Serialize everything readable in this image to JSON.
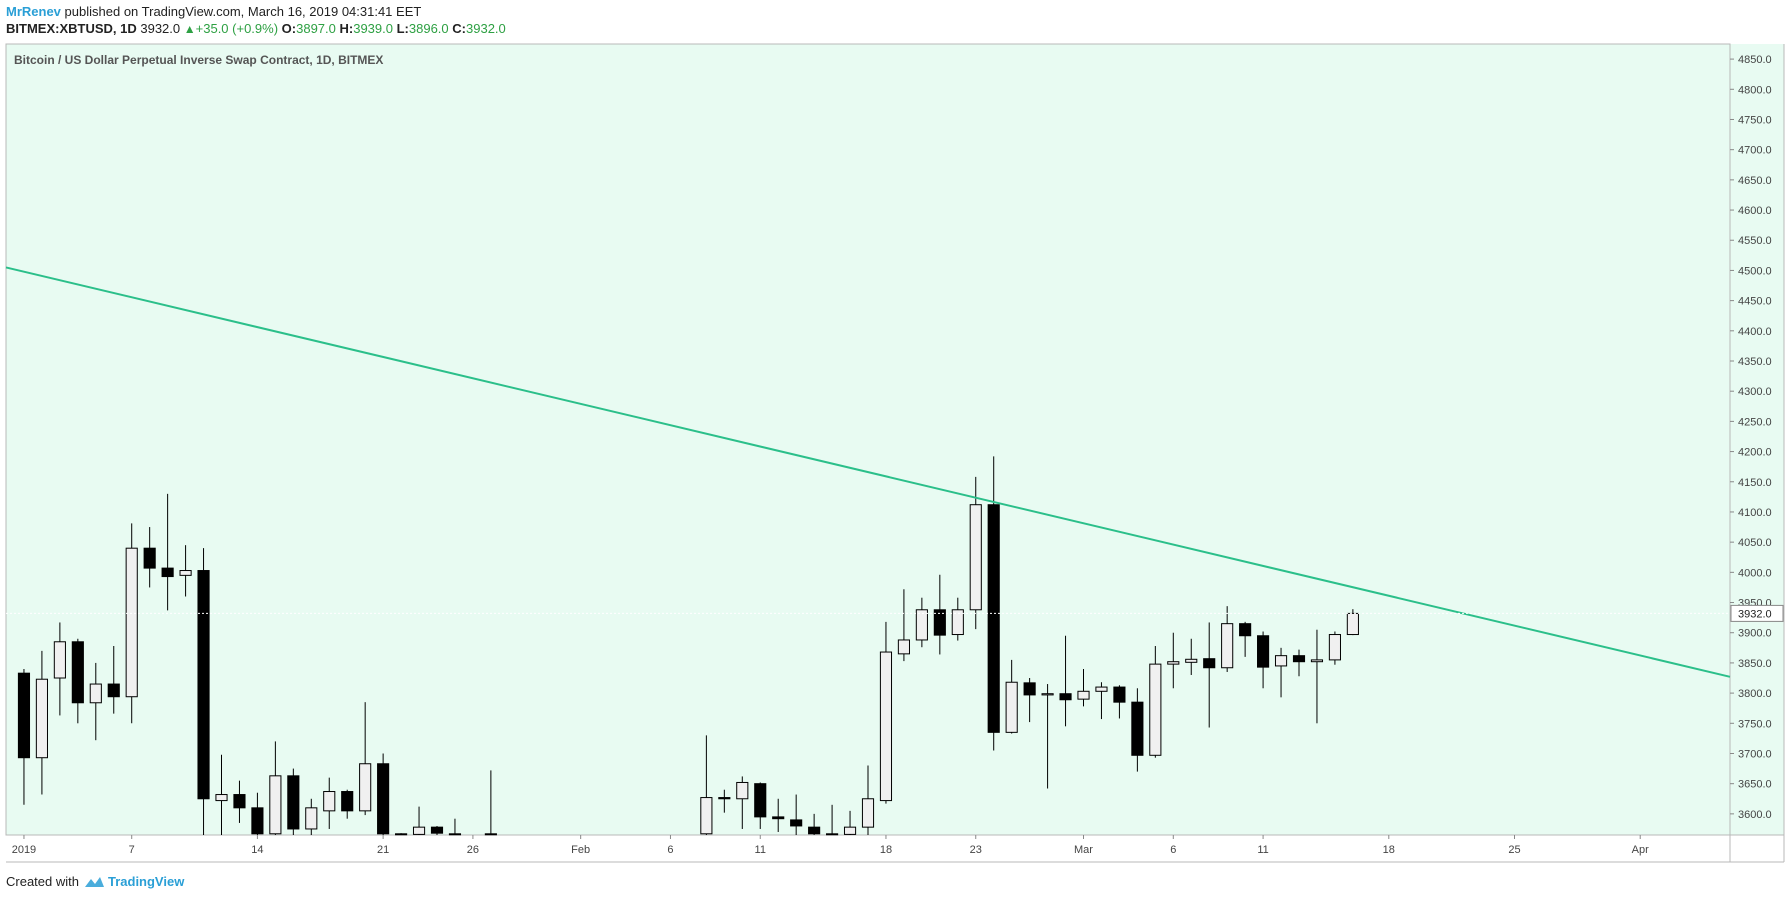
{
  "header": {
    "author": "MrRenev",
    "published_text": "published on TradingView.com, March 16, 2019 04:31:41 EET",
    "symbol": "BITMEX:XBTUSD, 1D",
    "last_price": "3932.0",
    "change": "+35.0 (+0.9%)",
    "ohlc": {
      "o_label": "O:",
      "o": "3897.0",
      "h_label": "H:",
      "h": "3939.0",
      "l_label": "L:",
      "l": "3896.0",
      "c_label": "C:",
      "c": "3932.0"
    }
  },
  "footer": {
    "created_with": "Created with",
    "brand": "TradingView"
  },
  "colors": {
    "background": "#e8fbf2",
    "trendline": "#2bbf8a",
    "bull_fill": "#f0f0f0",
    "bear_fill": "#000000",
    "accent_blue": "#2a9fd6",
    "up_green": "#2ea043"
  },
  "chart_data": {
    "type": "candlestick",
    "title": "Bitcoin / US Dollar Perpetual Inverse Swap Contract, 1D, BITMEX",
    "xlabel": "",
    "ylabel": "",
    "ylim": [
      3565,
      4875
    ],
    "x_range": [
      "2018-12-31",
      "2019-04-06"
    ],
    "grid": false,
    "y_ticks": [
      "4850.0",
      "4800.0",
      "4750.0",
      "4700.0",
      "4650.0",
      "4600.0",
      "4550.0",
      "4500.0",
      "4450.0",
      "4400.0",
      "4350.0",
      "4300.0",
      "4250.0",
      "4200.0",
      "4150.0",
      "4100.0",
      "4050.0",
      "4000.0",
      "3950.0",
      "3900.0",
      "3850.0",
      "3800.0",
      "3750.0",
      "3700.0",
      "3650.0",
      "3600.0"
    ],
    "x_ticks": [
      {
        "date": "2019-01-01",
        "label": "2019"
      },
      {
        "date": "2019-01-07",
        "label": "7"
      },
      {
        "date": "2019-01-14",
        "label": "14"
      },
      {
        "date": "2019-01-21",
        "label": "21"
      },
      {
        "date": "2019-01-26",
        "label": "26"
      },
      {
        "date": "2019-02-01",
        "label": "Feb"
      },
      {
        "date": "2019-02-06",
        "label": "6"
      },
      {
        "date": "2019-02-11",
        "label": "11"
      },
      {
        "date": "2019-02-18",
        "label": "18"
      },
      {
        "date": "2019-02-23",
        "label": "23"
      },
      {
        "date": "2019-03-01",
        "label": "Mar"
      },
      {
        "date": "2019-03-06",
        "label": "6"
      },
      {
        "date": "2019-03-11",
        "label": "11"
      },
      {
        "date": "2019-03-18",
        "label": "18"
      },
      {
        "date": "2019-03-25",
        "label": "25"
      },
      {
        "date": "2019-04-01",
        "label": "Apr"
      }
    ],
    "price_label": "3932.0",
    "trendline": {
      "start": {
        "date": "2018-12-31",
        "price": 4505
      },
      "end": {
        "date": "2019-04-06",
        "price": 3827
      }
    },
    "candles": [
      {
        "date": "2019-01-01",
        "o": 3833,
        "h": 3840,
        "l": 3615,
        "c": 3693
      },
      {
        "date": "2019-01-02",
        "o": 3693,
        "h": 3870,
        "l": 3632,
        "c": 3823
      },
      {
        "date": "2019-01-03",
        "o": 3825,
        "h": 3917,
        "l": 3763,
        "c": 3885
      },
      {
        "date": "2019-01-04",
        "o": 3885,
        "h": 3890,
        "l": 3750,
        "c": 3784
      },
      {
        "date": "2019-01-05",
        "o": 3784,
        "h": 3850,
        "l": 3722,
        "c": 3815
      },
      {
        "date": "2019-01-06",
        "o": 3815,
        "h": 3878,
        "l": 3766,
        "c": 3794
      },
      {
        "date": "2019-01-07",
        "o": 3794,
        "h": 4081,
        "l": 3750,
        "c": 4040
      },
      {
        "date": "2019-01-08",
        "o": 4040,
        "h": 4075,
        "l": 3975,
        "c": 4007
      },
      {
        "date": "2019-01-09",
        "o": 4007,
        "h": 4130,
        "l": 3937,
        "c": 3993
      },
      {
        "date": "2019-01-10",
        "o": 3995,
        "h": 4045,
        "l": 3960,
        "c": 4003
      },
      {
        "date": "2019-01-11",
        "o": 4003,
        "h": 4040,
        "l": 3565,
        "c": 3625
      },
      {
        "date": "2019-01-12",
        "o": 3622,
        "h": 3698,
        "l": 3565,
        "c": 3632
      },
      {
        "date": "2019-01-13",
        "o": 3632,
        "h": 3655,
        "l": 3585,
        "c": 3610
      },
      {
        "date": "2019-01-14",
        "o": 3610,
        "h": 3635,
        "l": 3565,
        "c": 3567
      },
      {
        "date": "2019-01-15",
        "o": 3567,
        "h": 3720,
        "l": 3565,
        "c": 3663
      },
      {
        "date": "2019-01-16",
        "o": 3663,
        "h": 3675,
        "l": 3565,
        "c": 3575
      },
      {
        "date": "2019-01-17",
        "o": 3575,
        "h": 3625,
        "l": 3565,
        "c": 3610
      },
      {
        "date": "2019-01-18",
        "o": 3605,
        "h": 3660,
        "l": 3575,
        "c": 3637
      },
      {
        "date": "2019-01-19",
        "o": 3637,
        "h": 3640,
        "l": 3592,
        "c": 3605
      },
      {
        "date": "2019-01-20",
        "o": 3605,
        "h": 3785,
        "l": 3598,
        "c": 3683
      },
      {
        "date": "2019-01-21",
        "o": 3683,
        "h": 3700,
        "l": 3565,
        "c": 3567
      },
      {
        "date": "2019-01-22",
        "o": 3567,
        "h": 3568,
        "l": 3565,
        "c": 3566
      },
      {
        "date": "2019-01-23",
        "o": 3566,
        "h": 3612,
        "l": 3565,
        "c": 3578
      },
      {
        "date": "2019-01-24",
        "o": 3578,
        "h": 3580,
        "l": 3565,
        "c": 3568
      },
      {
        "date": "2019-01-25",
        "o": 3567,
        "h": 3592,
        "l": 3565,
        "c": 3566
      },
      {
        "date": "2019-01-27",
        "o": 3566,
        "h": 3672,
        "l": 3565,
        "c": 3567
      },
      {
        "date": "2019-02-08",
        "o": 3567,
        "h": 3730,
        "l": 3565,
        "c": 3627
      },
      {
        "date": "2019-02-09",
        "o": 3627,
        "h": 3640,
        "l": 3602,
        "c": 3625
      },
      {
        "date": "2019-02-10",
        "o": 3625,
        "h": 3662,
        "l": 3575,
        "c": 3652
      },
      {
        "date": "2019-02-11",
        "o": 3650,
        "h": 3652,
        "l": 3575,
        "c": 3595
      },
      {
        "date": "2019-02-12",
        "o": 3595,
        "h": 3625,
        "l": 3570,
        "c": 3592
      },
      {
        "date": "2019-02-13",
        "o": 3590,
        "h": 3632,
        "l": 3565,
        "c": 3580
      },
      {
        "date": "2019-02-14",
        "o": 3578,
        "h": 3600,
        "l": 3565,
        "c": 3567
      },
      {
        "date": "2019-02-15",
        "o": 3567,
        "h": 3615,
        "l": 3565,
        "c": 3566
      },
      {
        "date": "2019-02-16",
        "o": 3566,
        "h": 3605,
        "l": 3565,
        "c": 3578
      },
      {
        "date": "2019-02-17",
        "o": 3578,
        "h": 3680,
        "l": 3565,
        "c": 3625
      },
      {
        "date": "2019-02-18",
        "o": 3622,
        "h": 3918,
        "l": 3617,
        "c": 3868
      },
      {
        "date": "2019-02-19",
        "o": 3865,
        "h": 3972,
        "l": 3853,
        "c": 3888
      },
      {
        "date": "2019-02-20",
        "o": 3888,
        "h": 3958,
        "l": 3876,
        "c": 3938
      },
      {
        "date": "2019-02-21",
        "o": 3938,
        "h": 3996,
        "l": 3864,
        "c": 3896
      },
      {
        "date": "2019-02-22",
        "o": 3897,
        "h": 3958,
        "l": 3887,
        "c": 3938
      },
      {
        "date": "2019-02-23",
        "o": 3938,
        "h": 4158,
        "l": 3906,
        "c": 4112
      },
      {
        "date": "2019-02-24",
        "o": 4112,
        "h": 4192,
        "l": 3705,
        "c": 3735
      },
      {
        "date": "2019-02-25",
        "o": 3735,
        "h": 3855,
        "l": 3733,
        "c": 3818
      },
      {
        "date": "2019-02-26",
        "o": 3817,
        "h": 3825,
        "l": 3752,
        "c": 3797
      },
      {
        "date": "2019-02-27",
        "o": 3797,
        "h": 3815,
        "l": 3642,
        "c": 3799
      },
      {
        "date": "2019-02-28",
        "o": 3799,
        "h": 3895,
        "l": 3745,
        "c": 3789
      },
      {
        "date": "2019-03-01",
        "o": 3790,
        "h": 3840,
        "l": 3778,
        "c": 3803
      },
      {
        "date": "2019-03-02",
        "o": 3803,
        "h": 3818,
        "l": 3757,
        "c": 3810
      },
      {
        "date": "2019-03-03",
        "o": 3810,
        "h": 3813,
        "l": 3758,
        "c": 3785
      },
      {
        "date": "2019-03-04",
        "o": 3785,
        "h": 3808,
        "l": 3670,
        "c": 3697
      },
      {
        "date": "2019-03-05",
        "o": 3697,
        "h": 3878,
        "l": 3693,
        "c": 3848
      },
      {
        "date": "2019-03-06",
        "o": 3848,
        "h": 3900,
        "l": 3808,
        "c": 3852
      },
      {
        "date": "2019-03-07",
        "o": 3851,
        "h": 3890,
        "l": 3830,
        "c": 3856
      },
      {
        "date": "2019-03-08",
        "o": 3857,
        "h": 3917,
        "l": 3743,
        "c": 3842
      },
      {
        "date": "2019-03-09",
        "o": 3842,
        "h": 3944,
        "l": 3835,
        "c": 3915
      },
      {
        "date": "2019-03-10",
        "o": 3915,
        "h": 3918,
        "l": 3860,
        "c": 3895
      },
      {
        "date": "2019-03-11",
        "o": 3895,
        "h": 3902,
        "l": 3808,
        "c": 3843
      },
      {
        "date": "2019-03-12",
        "o": 3845,
        "h": 3875,
        "l": 3793,
        "c": 3862
      },
      {
        "date": "2019-03-13",
        "o": 3862,
        "h": 3872,
        "l": 3828,
        "c": 3852
      },
      {
        "date": "2019-03-14",
        "o": 3852,
        "h": 3905,
        "l": 3750,
        "c": 3855
      },
      {
        "date": "2019-03-15",
        "o": 3855,
        "h": 3902,
        "l": 3847,
        "c": 3897
      },
      {
        "date": "2019-03-16",
        "o": 3897,
        "h": 3939,
        "l": 3896,
        "c": 3932
      }
    ]
  }
}
